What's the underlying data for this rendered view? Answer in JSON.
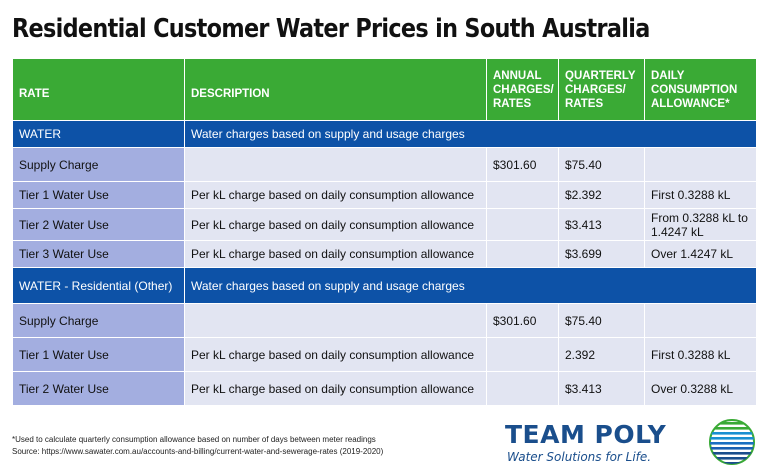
{
  "title": "Residential Customer Water Prices in South Australia",
  "headers": {
    "rate": "RATE",
    "description": "DESCRIPTION",
    "annual": [
      "ANNUAL",
      "CHARGES/",
      "RATES"
    ],
    "quarterly": [
      "QUARTERLY",
      "CHARGES/",
      "RATES"
    ],
    "daily": [
      "DAILY",
      "CONSUMPTION",
      "ALLOWANCE*"
    ]
  },
  "sections": [
    {
      "name": "WATER",
      "description": "Water charges based on supply and usage charges",
      "rows": [
        {
          "rate": "Supply Charge",
          "description": "",
          "annual": "$301.60",
          "quarterly": "$75.40",
          "allowance": ""
        },
        {
          "rate": "Tier 1 Water Use",
          "description": "Per kL charge based on daily consumption allowance",
          "annual": "",
          "quarterly": "$2.392",
          "allowance": "First 0.3288 kL"
        },
        {
          "rate": "Tier 2 Water Use",
          "description": "Per kL charge based on daily consumption allowance",
          "annual": "",
          "quarterly": "$3.413",
          "allowance": "From  0.3288 kL to 1.4247 kL"
        },
        {
          "rate": "Tier 3 Water Use",
          "description": "Per kL charge based on daily consumption allowance",
          "annual": "",
          "quarterly": "$3.699",
          "allowance": "Over 1.4247 kL"
        }
      ]
    },
    {
      "name": "WATER - Residential (Other)",
      "description": "Water charges based on supply and usage charges",
      "rows": [
        {
          "rate": "Supply Charge",
          "description": "",
          "annual": "$301.60",
          "quarterly": "$75.40",
          "allowance": ""
        },
        {
          "rate": "Tier 1 Water Use",
          "description": "Per kL charge based on daily consumption allowance",
          "annual": "",
          "quarterly": "2.392",
          "allowance": "First 0.3288 kL"
        },
        {
          "rate": "Tier 2 Water Use",
          "description": "Per kL charge based on daily consumption allowance",
          "annual": "",
          "quarterly": "$3.413",
          "allowance": "Over 0.3288 kL"
        }
      ]
    }
  ],
  "footnote": {
    "note": "*Used to calculate quarterly consumption allowance based on number of days between meter readings",
    "source": "Source: https://www.sawater.com.au/accounts-and-billing/current-water-and-sewerage-rates (2019-2020)"
  },
  "logo": {
    "name": "TEAM POLY",
    "tagline": "Water Solutions for Life."
  },
  "colors": {
    "header_green": "#3aaa35",
    "section_blue": "#0d52a7",
    "rate_cell": "#a3aee0",
    "data_cell": "#e2e5f2",
    "brand_blue": "#1a4e8c"
  }
}
